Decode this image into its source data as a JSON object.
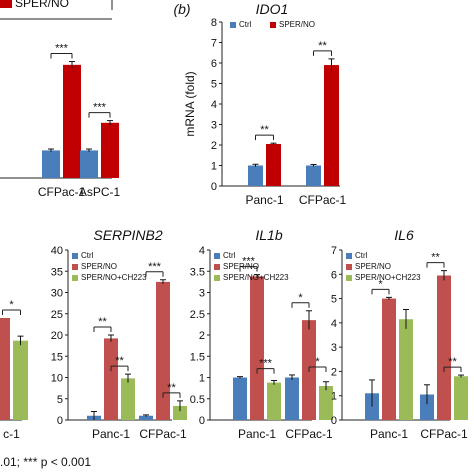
{
  "colors": {
    "ctrl": "#4a7ebb",
    "sper": "#c00000",
    "sper_light": "#c0504d",
    "ch223": "#9bbb59",
    "axis": "#222222"
  },
  "chart_data": [
    {
      "id": "panel-a-right",
      "type": "bar",
      "categories": [
        "CFPac-1",
        "AsPC-1"
      ],
      "category_display": [
        "CFPac-1",
        "AsPC-1"
      ],
      "series": [
        {
          "name": "",
          "values": [
            1.0,
            1.0
          ],
          "err": [
            0.05,
            0.05
          ]
        },
        {
          "name": "SPER/NO",
          "values": [
            4.1,
            2.0
          ],
          "err": [
            0.12,
            0.08
          ]
        }
      ],
      "ylim": [
        0,
        5
      ],
      "legend": [
        "SPER/NO"
      ],
      "sig": [
        "***",
        "***"
      ]
    },
    {
      "id": "panel-b",
      "type": "bar",
      "label": "(b)",
      "title": "IDO1",
      "ylabel": "mRNA (fold)",
      "categories": [
        "Panc-1",
        "CFPac-1"
      ],
      "series": [
        {
          "name": "Ctrl",
          "values": [
            1.0,
            1.0
          ],
          "err": [
            0.06,
            0.05
          ]
        },
        {
          "name": "SPER/NO",
          "values": [
            2.05,
            5.9
          ],
          "err": [
            0.04,
            0.3
          ]
        }
      ],
      "ylim": [
        0,
        8
      ],
      "ticks": [
        "0",
        "1",
        "2",
        "3",
        "4",
        "5",
        "6",
        "7",
        "8"
      ],
      "legend": [
        "Ctrl",
        "SPER/NO"
      ],
      "legend_position": "top-left",
      "sig": [
        "**",
        "**"
      ]
    },
    {
      "id": "panel-c-left",
      "type": "bar",
      "categories": [
        "c-1"
      ],
      "series": [
        {
          "name": "",
          "values": [
            18
          ],
          "err": [
            0
          ]
        },
        {
          "name": "",
          "values": [
            14
          ],
          "err": [
            0.8
          ]
        }
      ],
      "ylim": [
        0,
        30
      ],
      "sig": [
        "*"
      ]
    },
    {
      "id": "panel-serpinb2",
      "type": "bar",
      "title": "SERPINB2",
      "categories": [
        "Panc-1",
        "CFPac-1"
      ],
      "series": [
        {
          "name": "Ctrl",
          "values": [
            1.0,
            1.0
          ],
          "err": [
            1.0,
            0.2
          ]
        },
        {
          "name": "SPER/NO",
          "values": [
            19.2,
            32.5
          ],
          "err": [
            0.8,
            0.5
          ]
        },
        {
          "name": "SPER/NO+CH223",
          "values": [
            9.8,
            3.3
          ],
          "err": [
            1.0,
            1.2
          ]
        }
      ],
      "ylim": [
        0,
        40
      ],
      "ticks": [
        "0",
        "5",
        "10",
        "15",
        "20",
        "25",
        "30",
        "35",
        "40"
      ],
      "legend": [
        "Ctrl",
        "SPER/NO",
        "SPER/NO+CH223"
      ],
      "sig": [
        [
          "**",
          "**"
        ],
        [
          "***",
          "**"
        ]
      ]
    },
    {
      "id": "panel-il1b",
      "type": "bar",
      "title": "IL1b",
      "categories": [
        "Panc-1",
        "CFPac-1"
      ],
      "series": [
        {
          "name": "Ctrl",
          "values": [
            1.0,
            1.0
          ],
          "err": [
            0.02,
            0.06
          ]
        },
        {
          "name": "SPER/NO",
          "values": [
            3.38,
            2.35
          ],
          "err": [
            0.04,
            0.22
          ]
        },
        {
          "name": "SPER/NO+CH223",
          "values": [
            0.88,
            0.8
          ],
          "err": [
            0.05,
            0.1
          ]
        }
      ],
      "ylim": [
        0,
        4
      ],
      "ticks": [
        "0",
        "0.5",
        "1",
        "1.5",
        "2",
        "2.5",
        "3",
        "3.5",
        "4"
      ],
      "legend": [
        "Ctrl",
        "SPER/NO",
        "SPER/NO+CH223"
      ],
      "sig": [
        [
          "***",
          "***"
        ],
        [
          "*",
          "*"
        ]
      ]
    },
    {
      "id": "panel-il6",
      "type": "bar",
      "title": "IL6",
      "categories": [
        "Panc-1",
        "CFPac-1"
      ],
      "series": [
        {
          "name": "Ctrl",
          "values": [
            1.1,
            1.05
          ],
          "err": [
            0.55,
            0.4
          ]
        },
        {
          "name": "SPER/NO",
          "values": [
            5.0,
            5.95
          ],
          "err": [
            0.05,
            0.2
          ]
        },
        {
          "name": "SPER/NO+CH223",
          "values": [
            4.15,
            1.8
          ],
          "err": [
            0.4,
            0.05
          ]
        }
      ],
      "ylim": [
        0,
        7
      ],
      "ticks": [
        "0",
        "1",
        "2",
        "3",
        "4",
        "5",
        "6",
        "7"
      ],
      "legend": [
        "Ctrl",
        "SPER/NO",
        "SPER/NO+CH223"
      ],
      "sig": [
        [
          "*",
          ""
        ],
        [
          "**",
          "**"
        ]
      ]
    }
  ],
  "footnote": ".01; *** p < 0.001"
}
